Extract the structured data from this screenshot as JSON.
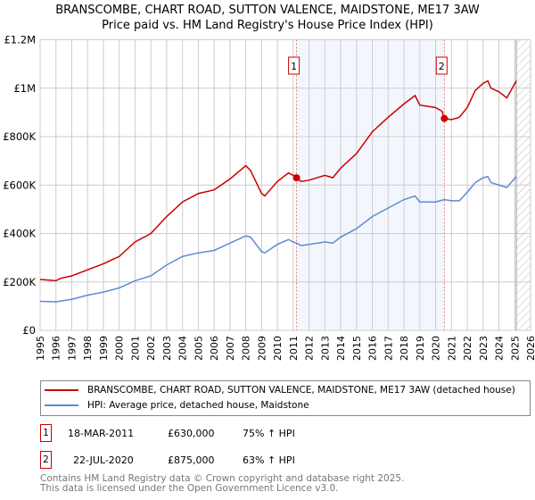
{
  "chart_data": {
    "type": "line",
    "title": "BRANSCOMBE, CHART ROAD, SUTTON VALENCE, MAIDSTONE, ME17 3AW",
    "subtitle": "Price paid vs. HM Land Registry's House Price Index (HPI)",
    "xlim": [
      1995,
      2026
    ],
    "ylim": [
      0,
      1200000
    ],
    "x_ticks": [
      "1995",
      "1996",
      "1997",
      "1998",
      "1999",
      "2000",
      "2001",
      "2002",
      "2003",
      "2004",
      "2005",
      "2006",
      "2007",
      "2008",
      "2009",
      "2010",
      "2011",
      "2012",
      "2013",
      "2014",
      "2015",
      "2016",
      "2017",
      "2018",
      "2019",
      "2020",
      "2021",
      "2022",
      "2023",
      "2024",
      "2025",
      "2026"
    ],
    "y_ticks": [
      {
        "v": 0,
        "label": "£0"
      },
      {
        "v": 200000,
        "label": "£200K"
      },
      {
        "v": 400000,
        "label": "£400K"
      },
      {
        "v": 600000,
        "label": "£600K"
      },
      {
        "v": 800000,
        "label": "£800K"
      },
      {
        "v": 1000000,
        "label": "£1M"
      },
      {
        "v": 1200000,
        "label": "£1.2M"
      }
    ],
    "grid": true,
    "shaded_region": [
      2011.21,
      2020.55
    ],
    "forecast_hatch_from": 2025.1,
    "series": [
      {
        "name": "BRANSCOMBE, CHART ROAD, SUTTON VALENCE, MAIDSTONE, ME17 3AW (detached house)",
        "color": "#cc0000",
        "x": [
          1995,
          1996,
          1996.3,
          1997,
          1998,
          1999,
          2000,
          2001,
          2002,
          2003,
          2004,
          2005,
          2006,
          2007,
          2008,
          2008.3,
          2009,
          2009.2,
          2010,
          2010.7,
          2011,
          2011.21,
          2011.5,
          2012,
          2013,
          2013.5,
          2014,
          2015,
          2016,
          2017,
          2018,
          2018.7,
          2019,
          2020,
          2020.4,
          2020.55,
          2021,
          2021.5,
          2022,
          2022.5,
          2023,
          2023.3,
          2023.5,
          2024,
          2024.5,
          2025.1
        ],
        "y": [
          210000,
          205000,
          215000,
          225000,
          250000,
          275000,
          305000,
          365000,
          400000,
          470000,
          530000,
          565000,
          580000,
          625000,
          680000,
          660000,
          565000,
          555000,
          615000,
          650000,
          640000,
          630000,
          615000,
          620000,
          640000,
          630000,
          670000,
          730000,
          820000,
          880000,
          935000,
          970000,
          930000,
          920000,
          905000,
          875000,
          870000,
          880000,
          920000,
          990000,
          1020000,
          1030000,
          1000000,
          985000,
          960000,
          1030000
        ]
      },
      {
        "name": "HPI: Average price, detached house, Maidstone",
        "color": "#5b8bd0",
        "x": [
          1995,
          1996,
          1997,
          1998,
          1999,
          2000,
          2001,
          2002,
          2003,
          2004,
          2005,
          2006,
          2007,
          2008,
          2008.3,
          2009,
          2009.2,
          2010,
          2010.7,
          2011,
          2011.21,
          2011.5,
          2012,
          2013,
          2013.5,
          2014,
          2015,
          2016,
          2017,
          2018,
          2018.7,
          2019,
          2020,
          2020.55,
          2021,
          2021.5,
          2022,
          2022.5,
          2023,
          2023.3,
          2023.5,
          2024,
          2024.5,
          2025.1
        ],
        "y": [
          120000,
          118000,
          128000,
          145000,
          158000,
          175000,
          205000,
          225000,
          270000,
          305000,
          320000,
          330000,
          360000,
          390000,
          385000,
          325000,
          320000,
          355000,
          375000,
          365000,
          360000,
          350000,
          355000,
          365000,
          360000,
          385000,
          420000,
          470000,
          505000,
          540000,
          555000,
          530000,
          530000,
          540000,
          535000,
          535000,
          570000,
          610000,
          630000,
          635000,
          610000,
          600000,
          590000,
          635000
        ]
      }
    ],
    "sales": [
      {
        "id": "1",
        "x": 2011.21,
        "price": 630000
      },
      {
        "id": "2",
        "x": 2020.55,
        "price": 875000
      }
    ]
  },
  "legend": {
    "red": "BRANSCOMBE, CHART ROAD, SUTTON VALENCE, MAIDSTONE, ME17 3AW (detached house)",
    "blue": "HPI: Average price, detached house, Maidstone"
  },
  "transactions": [
    {
      "id": "1",
      "date": "18-MAR-2011",
      "price": "£630,000",
      "hpi": "75% ↑ HPI"
    },
    {
      "id": "2",
      "date": "22-JUL-2020",
      "price": "£875,000",
      "hpi": "63% ↑ HPI"
    }
  ],
  "footer": {
    "line1": "Contains HM Land Registry data © Crown copyright and database right 2025.",
    "line2": "This data is licensed under the Open Government Licence v3.0."
  }
}
